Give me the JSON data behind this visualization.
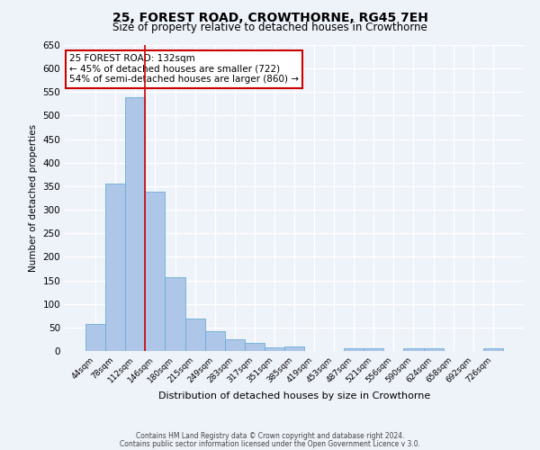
{
  "title": "25, FOREST ROAD, CROWTHORNE, RG45 7EH",
  "subtitle": "Size of property relative to detached houses in Crowthorne",
  "xlabel": "Distribution of detached houses by size in Crowthorne",
  "ylabel": "Number of detached properties",
  "bar_labels": [
    "44sqm",
    "78sqm",
    "112sqm",
    "146sqm",
    "180sqm",
    "215sqm",
    "249sqm",
    "283sqm",
    "317sqm",
    "351sqm",
    "385sqm",
    "419sqm",
    "453sqm",
    "487sqm",
    "521sqm",
    "556sqm",
    "590sqm",
    "624sqm",
    "658sqm",
    "692sqm",
    "726sqm"
  ],
  "bar_values": [
    58,
    355,
    540,
    338,
    157,
    68,
    42,
    25,
    18,
    7,
    10,
    0,
    0,
    5,
    5,
    0,
    5,
    5,
    0,
    0,
    5
  ],
  "bar_color": "#aec6e8",
  "bar_edge_color": "#6aaed6",
  "bar_width": 1.0,
  "ylim": [
    0,
    650
  ],
  "yticks": [
    0,
    50,
    100,
    150,
    200,
    250,
    300,
    350,
    400,
    450,
    500,
    550,
    600,
    650
  ],
  "vline_index": 2.5,
  "vline_color": "#cc0000",
  "annotation_title": "25 FOREST ROAD: 132sqm",
  "annotation_line1": "← 45% of detached houses are smaller (722)",
  "annotation_line2": "54% of semi-detached houses are larger (860) →",
  "annotation_box_color": "#cc0000",
  "background_color": "#eef2f9",
  "grid_color": "#ffffff",
  "footer_line1": "Contains HM Land Registry data © Crown copyright and database right 2024.",
  "footer_line2": "Contains public sector information licensed under the Open Government Licence v 3.0."
}
